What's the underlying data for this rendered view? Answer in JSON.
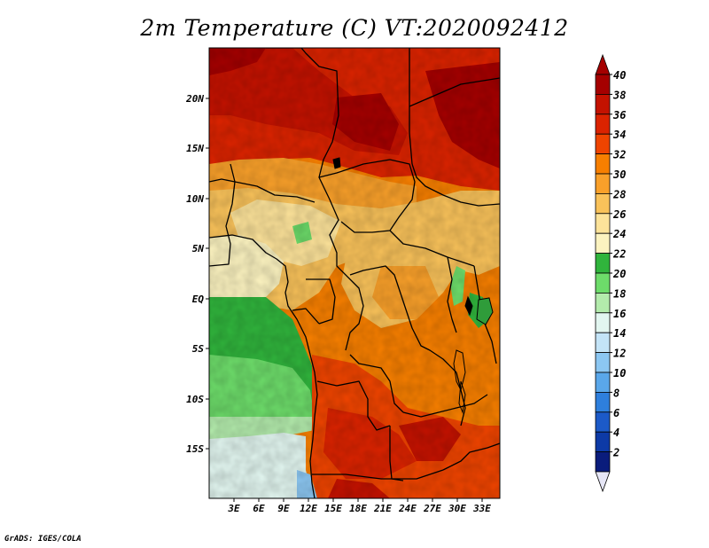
{
  "title": "2m Temperature (C) VT:2020092412",
  "credit": "GrADS: IGES/COLA",
  "map": {
    "lat_labels": [
      "20N",
      "15N",
      "10N",
      "5N",
      "EQ",
      "5S",
      "10S",
      "15S"
    ],
    "lon_labels": [
      "3E",
      "6E",
      "9E",
      "12E",
      "15E",
      "18E",
      "21E",
      "24E",
      "27E",
      "30E",
      "33E"
    ]
  },
  "colorbar": {
    "labels": [
      "40",
      "38",
      "36",
      "34",
      "32",
      "30",
      "28",
      "26",
      "24",
      "22",
      "20",
      "18",
      "16",
      "14",
      "12",
      "10",
      "8",
      "6",
      "4",
      "2"
    ],
    "colors": [
      "#a50000",
      "#c41200",
      "#db2300",
      "#ef4400",
      "#f77f00",
      "#f9a02a",
      "#f9c25a",
      "#fde39a",
      "#fcf3c0",
      "#30b43c",
      "#6ddc6a",
      "#b3ebac",
      "#e2f6f0",
      "#c4e4f7",
      "#8cc7f2",
      "#5aa7ea",
      "#2e7fdd",
      "#1c5ac8",
      "#0d3aa6",
      "#0a1c7c"
    ],
    "top_cap_color": "#a50000",
    "bottom_cap_color": "#e6e6f6"
  }
}
